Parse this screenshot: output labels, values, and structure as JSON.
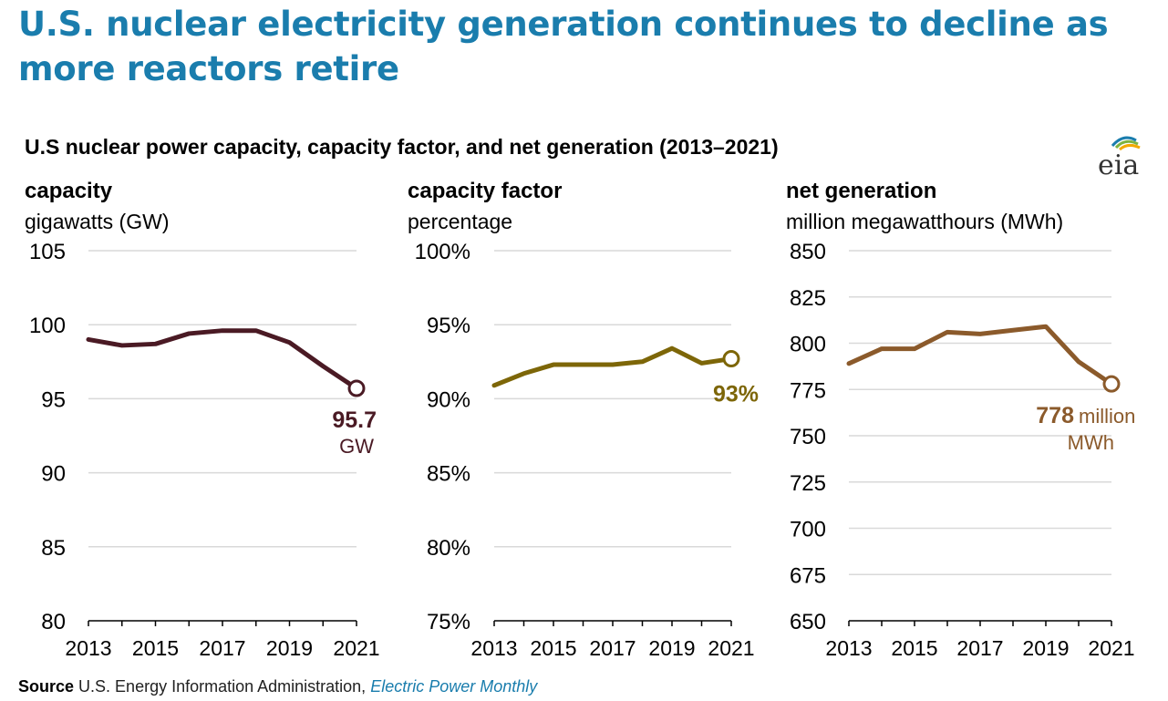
{
  "headline": "U.S. nuclear electricity generation continues to decline as more reactors retire",
  "subtitle": "U.S nuclear power capacity, capacity factor, and net generation (2013–2021)",
  "logo_text": "eia",
  "source": {
    "label": "Source",
    "text": "U.S. Energy Information Administration,",
    "publication": "Electric Power Monthly"
  },
  "chart_data": [
    {
      "type": "line",
      "title": "capacity",
      "ylabel": "gigawatts (GW)",
      "x": [
        2013,
        2014,
        2015,
        2016,
        2017,
        2018,
        2019,
        2020,
        2021
      ],
      "x_tick_labels": [
        "2013",
        "2015",
        "2017",
        "2019",
        "2021"
      ],
      "x_ticks": [
        2013,
        2015,
        2017,
        2019,
        2021
      ],
      "values": [
        99.0,
        98.6,
        98.7,
        99.4,
        99.6,
        99.6,
        98.8,
        97.2,
        95.7
      ],
      "ylim": [
        80,
        105
      ],
      "y_ticks": [
        80,
        85,
        90,
        95,
        100,
        105
      ],
      "y_tick_labels": [
        "80",
        "85",
        "90",
        "95",
        "100",
        "105"
      ],
      "color": "#4a1a24",
      "grid": true,
      "end_label_value": "95.7",
      "end_label_unit": "GW"
    },
    {
      "type": "line",
      "title": "capacity factor",
      "ylabel": "percentage",
      "x": [
        2013,
        2014,
        2015,
        2016,
        2017,
        2018,
        2019,
        2020,
        2021
      ],
      "x_tick_labels": [
        "2013",
        "2015",
        "2017",
        "2019",
        "2021"
      ],
      "x_ticks": [
        2013,
        2015,
        2017,
        2019,
        2021
      ],
      "values": [
        90.9,
        91.7,
        92.3,
        92.3,
        92.3,
        92.5,
        93.4,
        92.4,
        92.7
      ],
      "ylim": [
        75,
        100
      ],
      "y_ticks": [
        75,
        80,
        85,
        90,
        95,
        100
      ],
      "y_tick_labels": [
        "75%",
        "80%",
        "85%",
        "90%",
        "95%",
        "100%"
      ],
      "color": "#7d6608",
      "grid": true,
      "end_label_value": "93%",
      "end_label_unit": ""
    },
    {
      "type": "line",
      "title": "net generation",
      "ylabel": "million megawatthours (MWh)",
      "x": [
        2013,
        2014,
        2015,
        2016,
        2017,
        2018,
        2019,
        2020,
        2021
      ],
      "x_tick_labels": [
        "2013",
        "2015",
        "2017",
        "2019",
        "2021"
      ],
      "x_ticks": [
        2013,
        2015,
        2017,
        2019,
        2021
      ],
      "values": [
        789,
        797,
        797,
        806,
        805,
        807,
        809,
        790,
        778
      ],
      "ylim": [
        650,
        850
      ],
      "y_ticks": [
        650,
        675,
        700,
        725,
        750,
        775,
        800,
        825,
        850
      ],
      "y_tick_labels": [
        "650",
        "675",
        "700",
        "725",
        "750",
        "775",
        "800",
        "825",
        "850"
      ],
      "color": "#8b5a2b",
      "grid": true,
      "end_label_value": "778",
      "end_label_unit": "million",
      "end_label_unit2": "MWh"
    }
  ]
}
